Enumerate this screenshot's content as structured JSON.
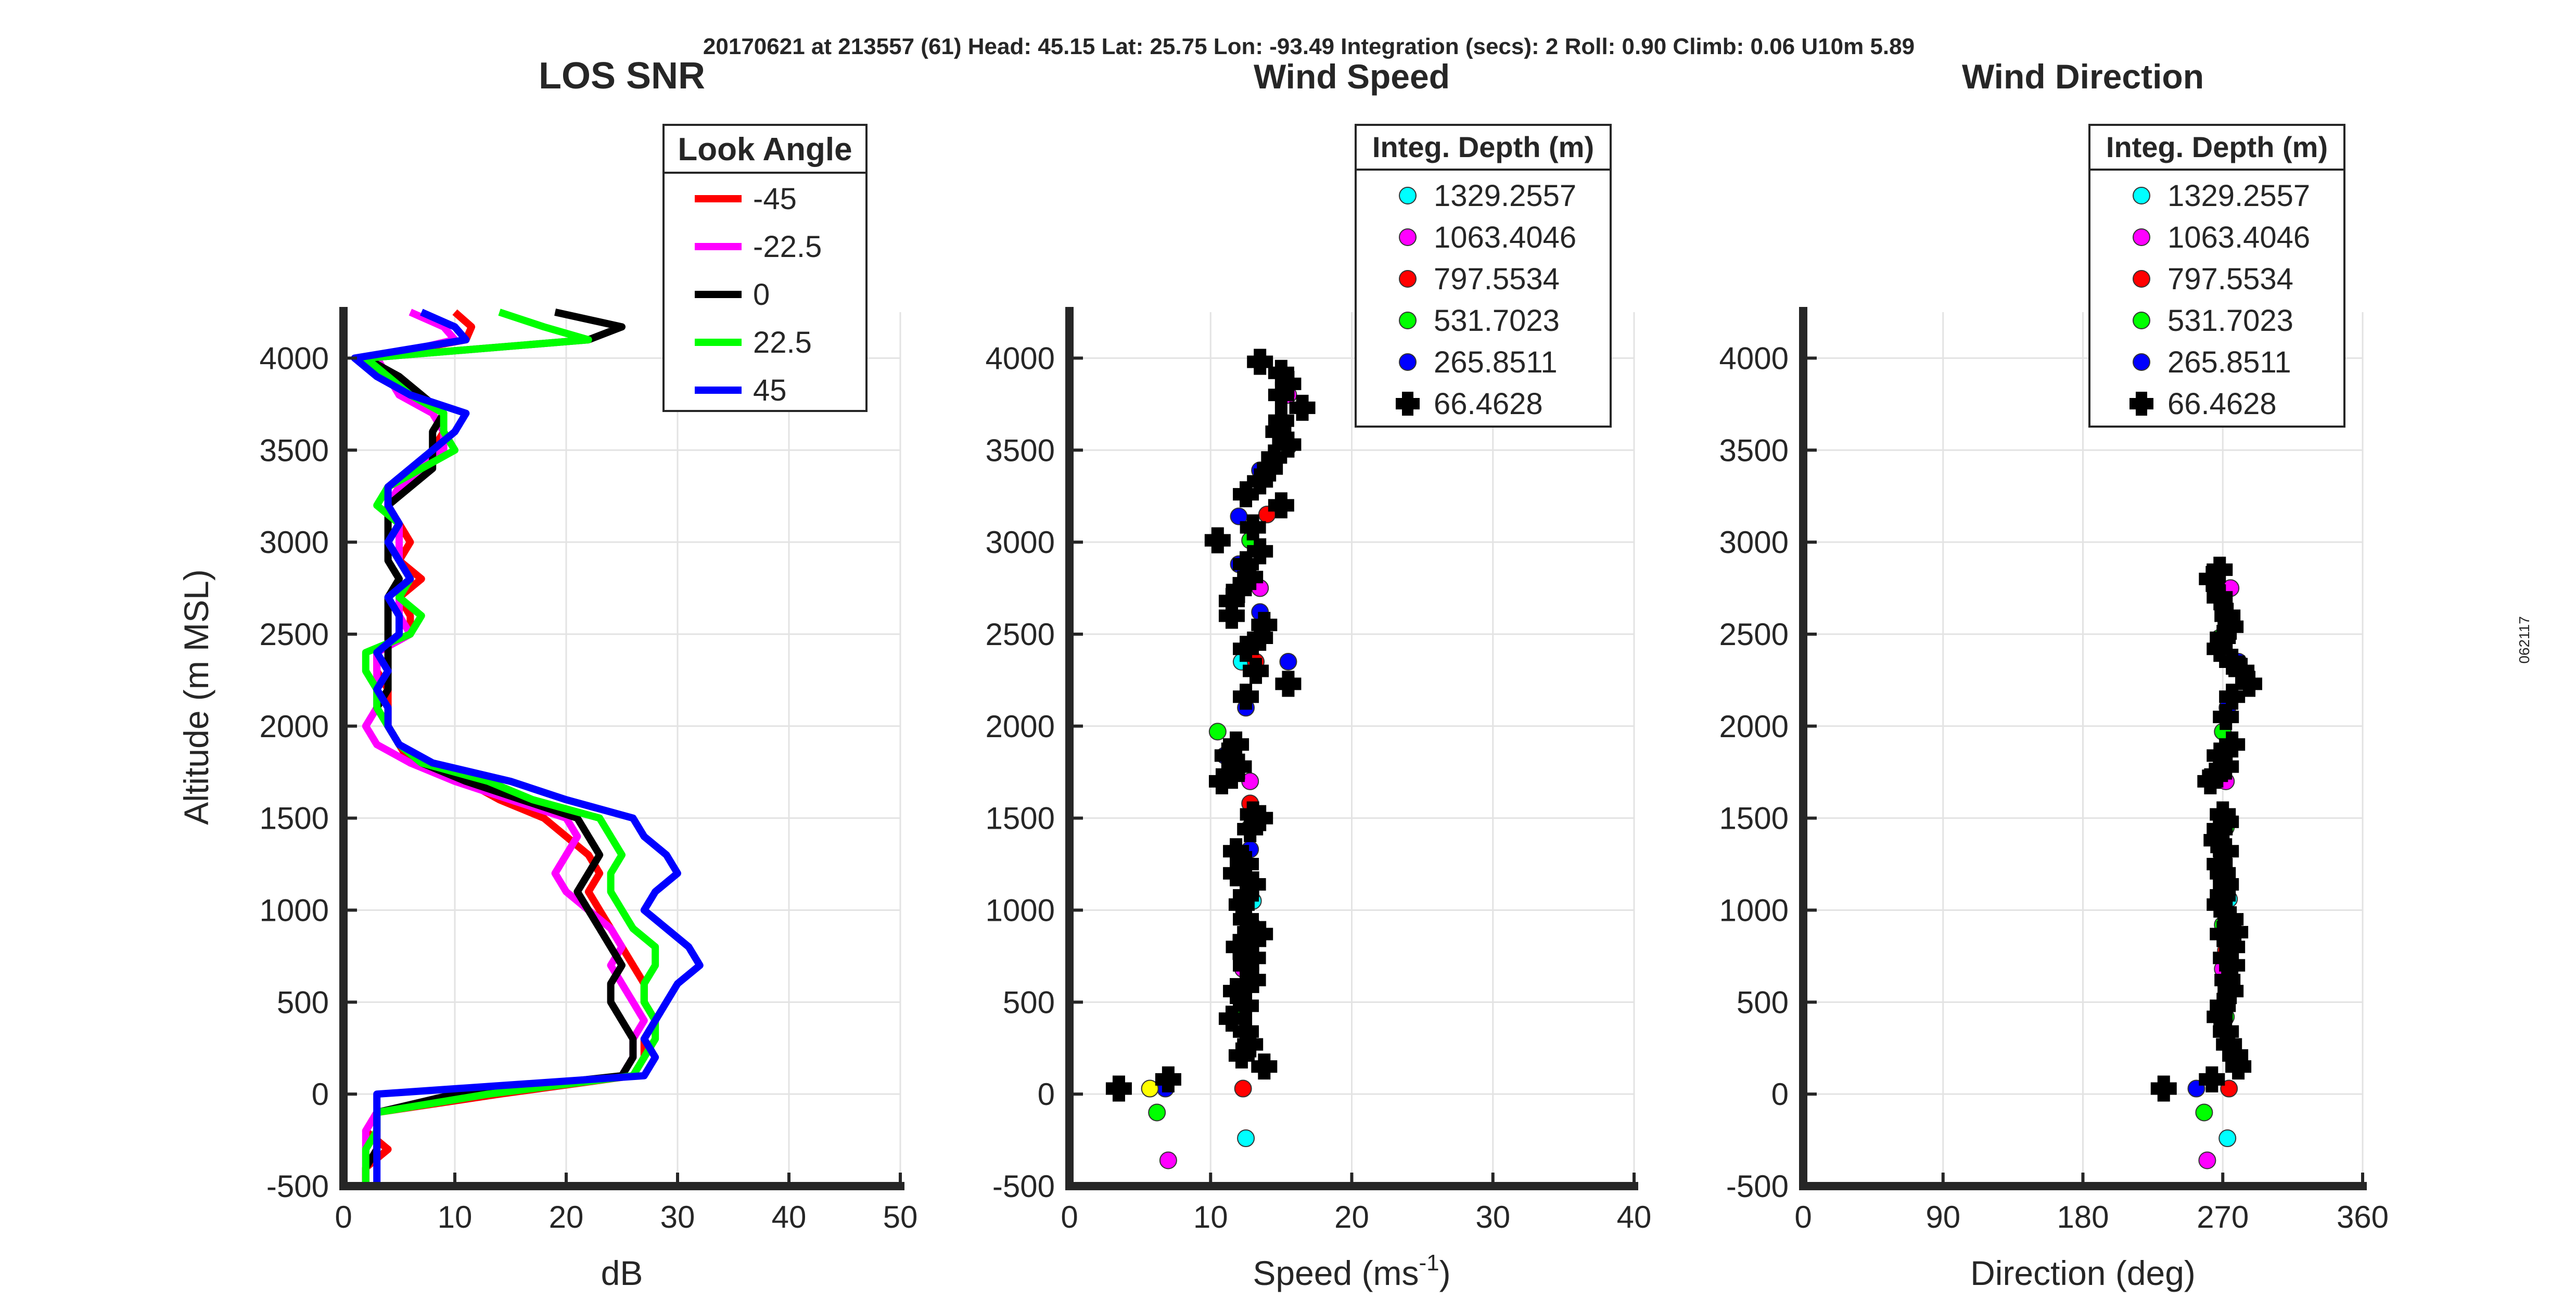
{
  "header": "20170621 at 213557 (61)  Head: 45.15  Lat: 25.75  Lon: -93.49  Integration (secs): 2  Roll: 0.90  Climb: 0.06  U10m 5.89",
  "side_label": "062117",
  "chart_data": [
    {
      "id": "snr",
      "type": "line",
      "title": "LOS SNR",
      "xlabel": "dB",
      "ylabel": "Altitude (m MSL)",
      "xlim": [
        0,
        50
      ],
      "ylim": [
        -500,
        4250
      ],
      "xticks": [
        0,
        10,
        20,
        30,
        40,
        50
      ],
      "yticks": [
        -500,
        0,
        500,
        1000,
        1500,
        2000,
        2500,
        3000,
        3500,
        4000
      ],
      "legend": {
        "title": "Look Angle",
        "position": "top-right"
      },
      "altitudes": [
        4250,
        4170,
        4100,
        4000,
        3900,
        3800,
        3700,
        3600,
        3500,
        3400,
        3300,
        3200,
        3100,
        3000,
        2900,
        2800,
        2700,
        2600,
        2500,
        2400,
        2300,
        2200,
        2100,
        2000,
        1900,
        1800,
        1700,
        1600,
        1500,
        1400,
        1300,
        1200,
        1100,
        1000,
        900,
        800,
        700,
        600,
        500,
        400,
        300,
        200,
        100,
        0,
        -100,
        -200,
        -300,
        -400,
        -500
      ],
      "series": [
        {
          "name": "-45",
          "color": "#ff0000",
          "values": [
            10,
            11.5,
            11,
            2,
            4,
            6,
            8,
            9,
            8,
            7,
            4,
            4,
            5,
            6,
            5,
            7,
            5,
            6,
            6,
            3,
            3,
            4,
            4,
            4,
            5,
            6,
            11,
            14,
            18,
            20,
            22,
            23,
            22,
            23,
            24,
            25,
            26,
            27,
            27,
            28,
            27,
            27,
            26,
            14,
            3,
            2,
            4,
            2,
            2
          ]
        },
        {
          "name": "-22.5",
          "color": "#ff00ff",
          "values": [
            6,
            9,
            10,
            3,
            4,
            5,
            8,
            9,
            9,
            7,
            5,
            4,
            5,
            5,
            5,
            6,
            5,
            5,
            6,
            3,
            3,
            3,
            3,
            2,
            3,
            6,
            10,
            15,
            20,
            21,
            20,
            19,
            20,
            22,
            24,
            25,
            24,
            25,
            26,
            27,
            26,
            26,
            25,
            12,
            3,
            2,
            2,
            2,
            2
          ]
        },
        {
          "name": "0",
          "color": "#000000",
          "values": [
            19,
            25,
            22,
            2,
            5,
            7,
            9,
            8,
            8,
            8,
            6,
            4,
            4,
            4,
            4,
            5,
            4,
            4,
            4,
            4,
            4,
            4,
            3,
            4,
            5,
            7,
            11,
            16,
            21,
            22,
            23,
            22,
            21,
            22,
            23,
            24,
            25,
            24,
            24,
            25,
            26,
            26,
            25,
            10,
            3,
            3,
            3,
            2,
            2
          ]
        },
        {
          "name": "22.5",
          "color": "#00ff00",
          "values": [
            14,
            18,
            22,
            2,
            4,
            6,
            9,
            9,
            10,
            7,
            4,
            3,
            5,
            4,
            5,
            6,
            5,
            7,
            6,
            2,
            2,
            3,
            3,
            4,
            5,
            7,
            13,
            17,
            23,
            24,
            25,
            24,
            24,
            25,
            26,
            28,
            28,
            27,
            27,
            28,
            28,
            27,
            26,
            13,
            3,
            3,
            2,
            2,
            2
          ]
        },
        {
          "name": "45",
          "color": "#0000ff",
          "values": [
            7,
            10,
            11,
            1,
            3,
            6,
            11,
            10,
            8,
            6,
            4,
            4,
            5,
            4,
            5,
            6,
            4,
            5,
            5,
            3,
            4,
            3,
            4,
            4,
            5,
            8,
            15,
            20,
            26,
            27,
            29,
            30,
            28,
            27,
            29,
            31,
            32,
            30,
            29,
            28,
            27,
            28,
            27,
            3,
            3,
            3,
            3,
            3,
            3
          ]
        }
      ]
    },
    {
      "id": "speed",
      "type": "scatter",
      "title": "Wind Speed",
      "xlabel": "Speed (ms",
      "xlabel_sup": "-1",
      "xlabel_end": ")",
      "xlim": [
        0,
        40
      ],
      "ylim": [
        -500,
        4250
      ],
      "xticks": [
        0,
        10,
        20,
        30,
        40
      ],
      "yticks": [
        -500,
        0,
        500,
        1000,
        1500,
        2000,
        2500,
        3000,
        3500,
        4000
      ],
      "legend": {
        "title": "Integ. Depth (m)",
        "position": "top-right"
      },
      "series": [
        {
          "name": "1329.2557",
          "color": "#00ffff",
          "marker": "circle",
          "points": [
            [
              12.2,
              2350
            ],
            [
              13,
              1050
            ],
            [
              12.5,
              -240
            ]
          ]
        },
        {
          "name": "1063.4046",
          "color": "#ff00ff",
          "marker": "circle",
          "points": [
            [
              15.5,
              3800
            ],
            [
              13.5,
              2750
            ],
            [
              12.8,
              1700
            ],
            [
              12.3,
              680
            ],
            [
              7,
              -360
            ]
          ]
        },
        {
          "name": "797.5534",
          "color": "#ff0000",
          "marker": "circle",
          "points": [
            [
              14,
              3150
            ],
            [
              13.2,
              2350
            ],
            [
              12.8,
              1580
            ],
            [
              12.8,
              780
            ],
            [
              12.3,
              30
            ]
          ]
        },
        {
          "name": "531.7023",
          "color": "#00ff00",
          "marker": "circle",
          "points": [
            [
              15.5,
              3520
            ],
            [
              12.8,
              3010
            ],
            [
              13.5,
              2480
            ],
            [
              10.5,
              1970
            ],
            [
              12.8,
              1450
            ],
            [
              12.9,
              920
            ],
            [
              12.2,
              420
            ],
            [
              6.2,
              -100
            ]
          ]
        },
        {
          "name": "265.8511",
          "color": "#0000ff",
          "marker": "circle",
          "points": [
            [
              13.5,
              3390
            ],
            [
              12,
              3140
            ],
            [
              12,
              2880
            ],
            [
              13.5,
              2620
            ],
            [
              15.5,
              2350
            ],
            [
              12.5,
              2100
            ],
            [
              11,
              1840
            ],
            [
              12.8,
              1330
            ],
            [
              12.5,
              1060
            ],
            [
              12.5,
              800
            ],
            [
              12.2,
              540
            ],
            [
              6.8,
              30
            ]
          ]
        },
        {
          "name": "",
          "color": "#ffff00",
          "marker": "circle",
          "points": [
            [
              5.7,
              30
            ]
          ]
        },
        {
          "name": "66.4628",
          "color": "#000000",
          "marker": "plus",
          "points": [
            [
              13.5,
              3980
            ],
            [
              15,
              3920
            ],
            [
              15.5,
              3860
            ],
            [
              15,
              3800
            ],
            [
              16.5,
              3730
            ],
            [
              15,
              3660
            ],
            [
              14.8,
              3600
            ],
            [
              15.5,
              3530
            ],
            [
              14.5,
              3460
            ],
            [
              14.2,
              3400
            ],
            [
              13.5,
              3330
            ],
            [
              12.5,
              3260
            ],
            [
              15,
              3200
            ],
            [
              13,
              3080
            ],
            [
              10.5,
              3010
            ],
            [
              13.5,
              2950
            ],
            [
              12.5,
              2880
            ],
            [
              12.8,
              2810
            ],
            [
              12,
              2740
            ],
            [
              11.5,
              2680
            ],
            [
              13.8,
              2550
            ],
            [
              11.5,
              2600
            ],
            [
              13.5,
              2480
            ],
            [
              12.5,
              2420
            ],
            [
              13.2,
              2300
            ],
            [
              15.5,
              2230
            ],
            [
              12.5,
              2160
            ],
            [
              11.8,
              1900
            ],
            [
              11.2,
              1840
            ],
            [
              12,
              1780
            ],
            [
              10.8,
              1700
            ],
            [
              11.5,
              1730
            ],
            [
              13,
              1520
            ],
            [
              13.5,
              1500
            ],
            [
              12.8,
              1440
            ],
            [
              11.8,
              1320
            ],
            [
              12.5,
              1250
            ],
            [
              11.8,
              1200
            ],
            [
              13,
              1140
            ],
            [
              12.5,
              1080
            ],
            [
              12.2,
              1030
            ],
            [
              12.5,
              950
            ],
            [
              12.8,
              880
            ],
            [
              13.5,
              870
            ],
            [
              12,
              800
            ],
            [
              13,
              740
            ],
            [
              12.5,
              700
            ],
            [
              13,
              620
            ],
            [
              11.8,
              560
            ],
            [
              12.5,
              480
            ],
            [
              11.5,
              410
            ],
            [
              12.5,
              340
            ],
            [
              12.8,
              270
            ],
            [
              12.2,
              210
            ],
            [
              13.8,
              150
            ],
            [
              7,
              80
            ],
            [
              3.5,
              30
            ]
          ]
        }
      ]
    },
    {
      "id": "direction",
      "type": "scatter",
      "title": "Wind Direction",
      "xlabel": "Direction (deg)",
      "xlim": [
        0,
        360
      ],
      "ylim": [
        -500,
        4250
      ],
      "xticks": [
        0,
        90,
        180,
        270,
        360
      ],
      "yticks": [
        -500,
        0,
        500,
        1000,
        1500,
        2000,
        2500,
        3000,
        3500,
        4000
      ],
      "legend": {
        "title": "Integ. Depth (m)",
        "position": "top-right"
      },
      "series": [
        {
          "name": "1329.2557",
          "color": "#00ffff",
          "marker": "circle",
          "points": [
            [
              274,
              1060
            ],
            [
              273,
              -240
            ]
          ]
        },
        {
          "name": "1063.4046",
          "color": "#ff00ff",
          "marker": "circle",
          "points": [
            [
              275,
              2750
            ],
            [
              272,
              1700
            ],
            [
              270,
              680
            ],
            [
              260,
              -360
            ]
          ]
        },
        {
          "name": "797.5534",
          "color": "#ff0000",
          "marker": "circle",
          "points": [
            [
              272,
              780
            ],
            [
              274,
              30
            ]
          ]
        },
        {
          "name": "531.7023",
          "color": "#00ff00",
          "marker": "circle",
          "points": [
            [
              268,
              2480
            ],
            [
              270,
              1970
            ],
            [
              272,
              1450
            ],
            [
              270,
              920
            ],
            [
              272,
              420
            ],
            [
              258,
              -100
            ]
          ]
        },
        {
          "name": "265.8511",
          "color": "#0000ff",
          "marker": "circle",
          "points": [
            [
              280,
              2350
            ],
            [
              273,
              2100
            ],
            [
              270,
              1330
            ],
            [
              253,
              30
            ]
          ]
        },
        {
          "name": "66.4628",
          "color": "#000000",
          "marker": "plus",
          "points": [
            [
              268,
              2850
            ],
            [
              263,
              2800
            ],
            [
              268,
              2700
            ],
            [
              273,
              2600
            ],
            [
              275,
              2540
            ],
            [
              270,
              2480
            ],
            [
              268,
              2420
            ],
            [
              276,
              2350
            ],
            [
              282,
              2300
            ],
            [
              287,
              2230
            ],
            [
              276,
              2160
            ],
            [
              272,
              2050
            ],
            [
              276,
              1900
            ],
            [
              268,
              1840
            ],
            [
              272,
              1780
            ],
            [
              262,
              1700
            ],
            [
              265,
              1730
            ],
            [
              270,
              1520
            ],
            [
              272,
              1480
            ],
            [
              268,
              1440
            ],
            [
              266,
              1380
            ],
            [
              272,
              1320
            ],
            [
              268,
              1250
            ],
            [
              270,
              1200
            ],
            [
              272,
              1140
            ],
            [
              270,
              1080
            ],
            [
              268,
              1030
            ],
            [
              275,
              950
            ],
            [
              278,
              880
            ],
            [
              270,
              870
            ],
            [
              276,
              800
            ],
            [
              272,
              740
            ],
            [
              276,
              700
            ],
            [
              273,
              620
            ],
            [
              275,
              560
            ],
            [
              270,
              480
            ],
            [
              268,
              420
            ],
            [
              272,
              340
            ],
            [
              274,
              270
            ],
            [
              278,
              210
            ],
            [
              280,
              150
            ],
            [
              263,
              80
            ],
            [
              232,
              30
            ]
          ]
        }
      ]
    }
  ]
}
